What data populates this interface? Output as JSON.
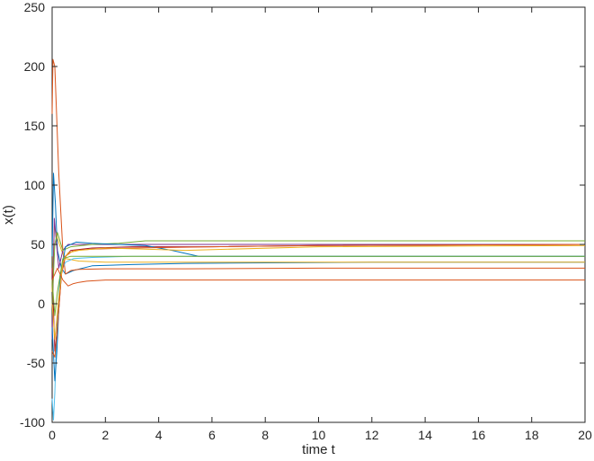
{
  "chart_data": {
    "type": "line",
    "title": "",
    "xlabel": "time t",
    "ylabel": "x(t)",
    "xlim": [
      0,
      20
    ],
    "ylim": [
      -100,
      250
    ],
    "x_ticks": [
      0,
      2,
      4,
      6,
      8,
      10,
      12,
      14,
      16,
      18,
      20
    ],
    "y_ticks": [
      -100,
      -50,
      0,
      50,
      100,
      150,
      200,
      250
    ],
    "grid": false,
    "legend": "none",
    "series": [
      {
        "color": "#0072BD",
        "x": [
          0,
          0.05,
          0.12,
          0.2,
          0.35,
          0.5,
          0.8,
          1.5,
          3,
          5,
          8,
          12,
          20
        ],
        "y": [
          40,
          110,
          85,
          45,
          30,
          25,
          28,
          32,
          33,
          34,
          34.5,
          35,
          35
        ]
      },
      {
        "color": "#D95319",
        "x": [
          0,
          0.03,
          0.1,
          0.25,
          0.4,
          0.5,
          0.7,
          1.0,
          2,
          5,
          10,
          20
        ],
        "y": [
          160,
          206,
          200,
          110,
          45,
          25,
          28,
          29,
          29.5,
          29.5,
          30,
          30
        ]
      },
      {
        "color": "#EDB120",
        "x": [
          0,
          0.08,
          0.2,
          0.35,
          0.5,
          1,
          2,
          3,
          5,
          10,
          20
        ],
        "y": [
          10,
          65,
          55,
          45,
          38,
          36,
          35,
          35,
          35,
          35,
          35
        ]
      },
      {
        "color": "#7E2F8E",
        "x": [
          0,
          0.08,
          0.15,
          0.25,
          0.4,
          0.6,
          1.5,
          3,
          6,
          10,
          20
        ],
        "y": [
          -30,
          72,
          55,
          30,
          45,
          50,
          50,
          50,
          50,
          50,
          50
        ]
      },
      {
        "color": "#77AC30",
        "x": [
          0,
          0.1,
          0.2,
          0.4,
          0.7,
          1.5,
          2.5,
          3.5,
          5,
          10,
          20
        ],
        "y": [
          0,
          50,
          60,
          45,
          48,
          50,
          51,
          53,
          53,
          53,
          53
        ]
      },
      {
        "color": "#4DBEEE",
        "x": [
          0,
          0.05,
          0.1,
          0.18,
          0.3,
          0.5,
          0.8,
          1.5,
          3,
          10,
          20
        ],
        "y": [
          -80,
          -98,
          -75,
          -20,
          25,
          35,
          38,
          39,
          40,
          40,
          40
        ]
      },
      {
        "color": "#A2142F",
        "x": [
          0,
          0.1,
          0.2,
          0.35,
          0.5,
          0.7,
          1.5,
          3,
          6,
          10,
          20
        ],
        "y": [
          30,
          -40,
          -20,
          25,
          40,
          45,
          47,
          48,
          48,
          49,
          50
        ]
      },
      {
        "color": "#0072BD",
        "x": [
          0,
          0.1,
          0.18,
          0.3,
          0.5,
          0.9,
          1.5,
          2.5,
          3.5,
          4.5,
          5.5,
          10,
          20
        ],
        "y": [
          -20,
          -65,
          -40,
          20,
          48,
          52,
          51,
          50,
          49,
          45,
          40,
          40,
          40
        ]
      },
      {
        "color": "#D95319",
        "x": [
          0,
          0.1,
          0.2,
          0.35,
          0.5,
          0.8,
          1.5,
          3,
          6,
          10,
          20
        ],
        "y": [
          -40,
          -45,
          -20,
          25,
          40,
          45,
          46,
          47,
          48,
          49,
          50
        ]
      },
      {
        "color": "#EDB120",
        "x": [
          0,
          0.1,
          0.25,
          0.4,
          0.6,
          1.0,
          2,
          3.5,
          5,
          10,
          20
        ],
        "y": [
          0,
          -30,
          5,
          35,
          43,
          45,
          47,
          46,
          45,
          48,
          49
        ]
      },
      {
        "color": "#77AC30",
        "x": [
          0,
          0.1,
          0.2,
          0.4,
          0.7,
          1.5,
          3,
          6,
          10,
          20
        ],
        "y": [
          20,
          -10,
          10,
          38,
          40,
          40,
          40,
          40,
          40,
          40
        ]
      },
      {
        "color": "#D95319",
        "x": [
          0,
          0.2,
          0.4,
          0.6,
          0.8,
          1.0,
          1.3,
          2,
          5,
          10,
          20
        ],
        "y": [
          20,
          30,
          20,
          15,
          17,
          18,
          19,
          20,
          20,
          20,
          20
        ]
      }
    ]
  }
}
